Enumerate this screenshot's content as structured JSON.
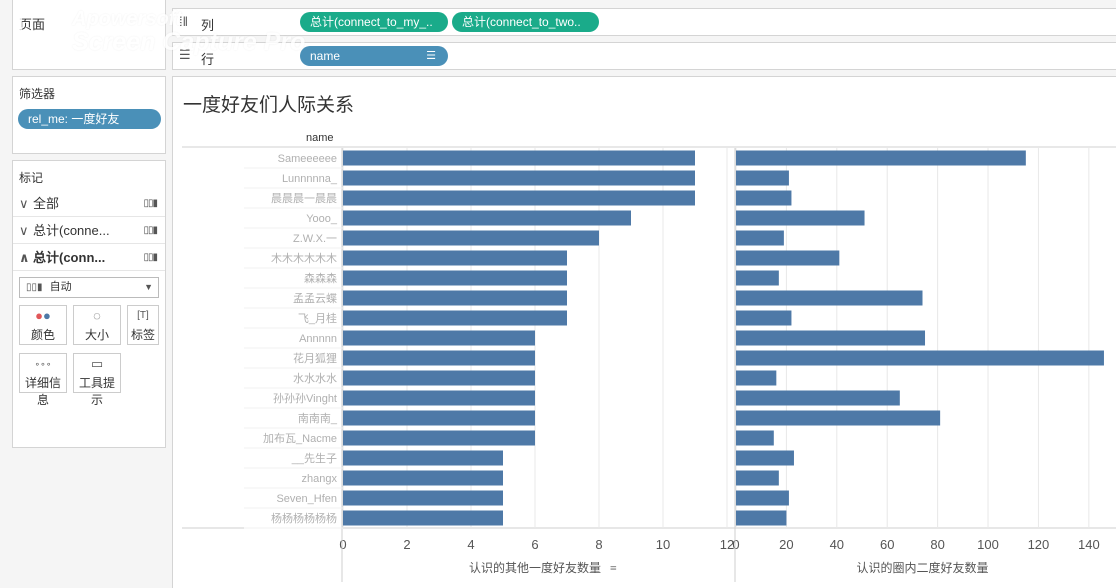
{
  "shelves": {
    "pages_label": "页面",
    "columns_label": "列",
    "rows_label": "行",
    "column_pills": [
      "总计(connect_to_my_..",
      "总计(connect_to_two.."
    ],
    "row_pill": "name"
  },
  "filters": {
    "title": "筛选器",
    "pill": "rel_me: 一度好友"
  },
  "marks": {
    "title": "标记",
    "rows": [
      {
        "label": "全部",
        "expanded": false
      },
      {
        "label": "总计(conne...",
        "expanded": false
      },
      {
        "label": "总计(conn...",
        "expanded": true
      }
    ],
    "type_select": "自动",
    "buttons": [
      {
        "label": "颜色",
        "icon": "color-dots-icon"
      },
      {
        "label": "大小",
        "icon": "size-icon"
      },
      {
        "label": "标签",
        "icon": "text-label-icon"
      },
      {
        "label": "详细信息",
        "icon": "detail-icon"
      },
      {
        "label": "工具提示",
        "icon": "tooltip-icon"
      }
    ]
  },
  "watermark": {
    "line1": "Apowersoft",
    "line2": "Screen Capture Pro"
  },
  "colors": {
    "bar": "#4e79a7",
    "pill_green": "#1aab8a",
    "pill_blue": "#4a90b8"
  },
  "chart_data": {
    "type": "bar",
    "title": "一度好友们人际关系",
    "row_header": "name",
    "orientation": "horizontal",
    "categories": [
      "Sameeeeee",
      "Lunnnnna_",
      "晨晨晨一晨晨",
      "Yooo_",
      "Z.W.X.一",
      "木木木木木木",
      "森森森",
      "孟孟云蝶",
      "飞_月桂",
      "Annnnn",
      "花月狐狸",
      "水水水水",
      "孙孙孙Vinght",
      "南南南_",
      "加布瓦_Nacme",
      "__先生子",
      "zhangx",
      "Seven_Hfen",
      "杨杨杨杨杨杨"
    ],
    "series": [
      {
        "name": "认识的其他一度好友数量",
        "values": [
          11,
          11,
          11,
          9,
          8,
          7,
          7,
          7,
          7,
          6,
          6,
          6,
          6,
          6,
          6,
          5,
          5,
          5,
          5
        ],
        "xlim": [
          0,
          12
        ],
        "ticks": [
          0,
          2,
          4,
          6,
          8,
          10,
          12
        ]
      },
      {
        "name": "认识的圈内二度好友数量",
        "values": [
          115,
          21,
          22,
          51,
          19,
          41,
          17,
          74,
          22,
          75,
          146,
          16,
          65,
          81,
          15,
          23,
          17,
          21,
          20
        ],
        "xlim": [
          0,
          148
        ],
        "ticks": [
          0,
          20,
          40,
          60,
          80,
          100,
          120,
          140
        ]
      }
    ],
    "axis_titles": [
      "认识的其他一度好友数量",
      "认识的圈内二度好友数量"
    ],
    "grid": true
  }
}
